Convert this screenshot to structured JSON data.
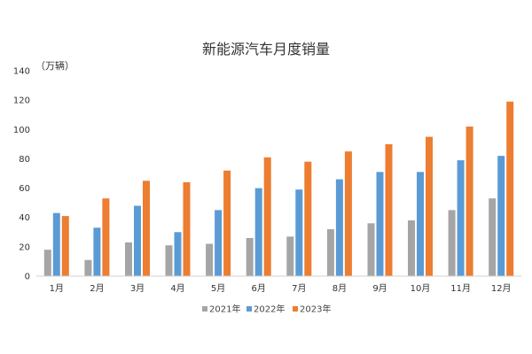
{
  "chart_data": {
    "type": "bar",
    "title": "新能源汽车月度销量",
    "ylabel": "（万辆）",
    "xlabel": "",
    "categories": [
      "1月",
      "2月",
      "3月",
      "4月",
      "5月",
      "6月",
      "7月",
      "8月",
      "9月",
      "10月",
      "11月",
      "12月"
    ],
    "series": [
      {
        "name": "2021年",
        "color": "#a5a5a5",
        "values": [
          18,
          11,
          23,
          21,
          22,
          26,
          27,
          32,
          36,
          38,
          45,
          53
        ]
      },
      {
        "name": "2022年",
        "color": "#5b9bd5",
        "values": [
          43,
          33,
          48,
          30,
          45,
          60,
          59,
          66,
          71,
          71,
          79,
          82
        ]
      },
      {
        "name": "2023年",
        "color": "#ed7d31",
        "values": [
          41,
          53,
          65,
          64,
          72,
          81,
          78,
          85,
          90,
          95,
          102,
          119
        ]
      }
    ],
    "ylim": [
      0,
      140
    ],
    "yticks": [
      0,
      20,
      40,
      60,
      80,
      100,
      120,
      140
    ],
    "grid": false,
    "legend_position": "bottom"
  }
}
